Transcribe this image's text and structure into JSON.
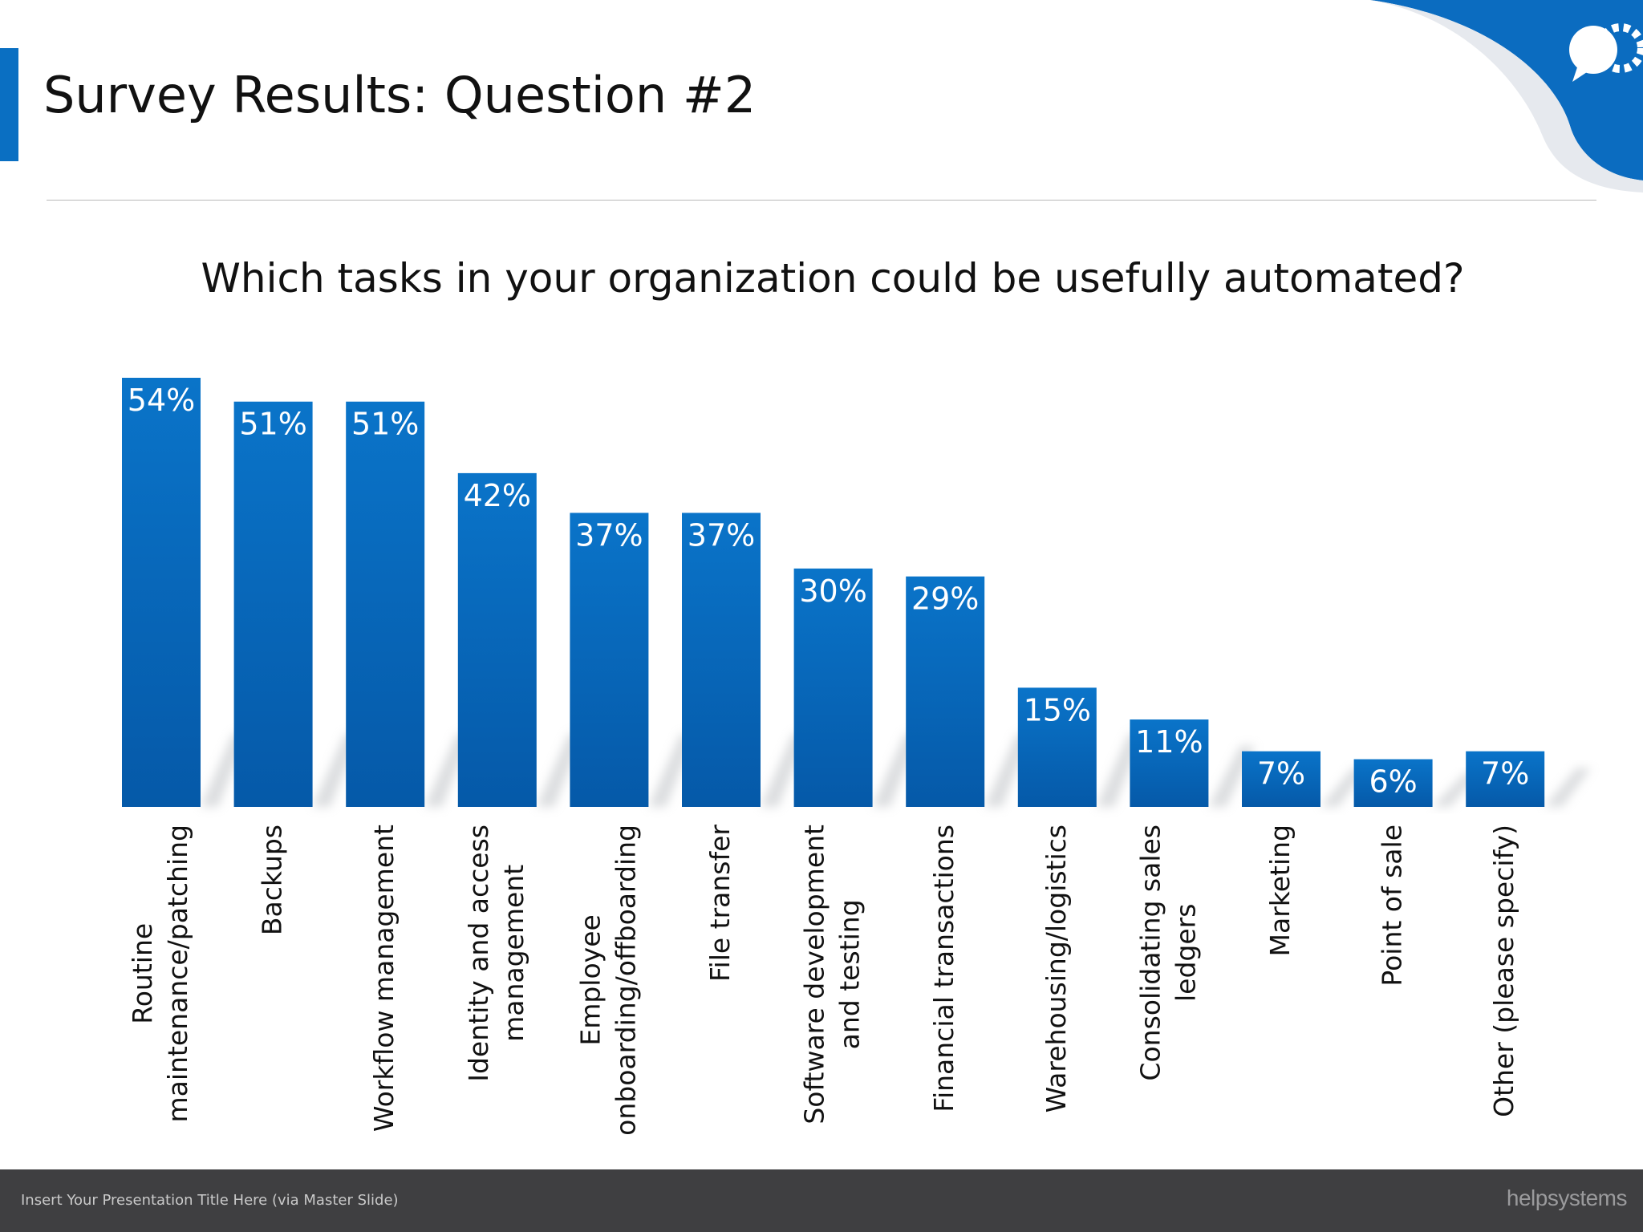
{
  "slide": {
    "title": "Survey Results: Question #2",
    "footer_text": "Insert Your Presentation Title Here (via Master Slide)",
    "logo_text": "helpsystems",
    "corner_icon": "gear-chat-icon",
    "accent_color": "#0a6fc2"
  },
  "chart_data": {
    "type": "bar",
    "title": "Which tasks in your organization could be usefully automated?",
    "categories": [
      [
        "Routine",
        "maintenance/patching"
      ],
      [
        "Backups"
      ],
      [
        "Workflow management"
      ],
      [
        "Identity and access",
        "management"
      ],
      [
        "Employee",
        "onboarding/offboarding"
      ],
      [
        "File transfer"
      ],
      [
        "Software development",
        "and testing"
      ],
      [
        "Financial transactions"
      ],
      [
        "Warehousing/logistics"
      ],
      [
        "Consolidating sales",
        "ledgers"
      ],
      [
        "Marketing"
      ],
      [
        "Point of sale"
      ],
      [
        "Other (please specify)"
      ]
    ],
    "values": [
      54,
      51,
      51,
      42,
      37,
      37,
      30,
      29,
      15,
      11,
      7,
      6,
      7
    ],
    "data_labels": [
      "54%",
      "51%",
      "51%",
      "42%",
      "37%",
      "37%",
      "30%",
      "29%",
      "15%",
      "11%",
      "7%",
      "6%",
      "7%"
    ],
    "ylim": [
      0,
      54
    ],
    "grid": false,
    "bar_color_top": "#0a74c9",
    "bar_color_bottom": "#0559a8"
  }
}
